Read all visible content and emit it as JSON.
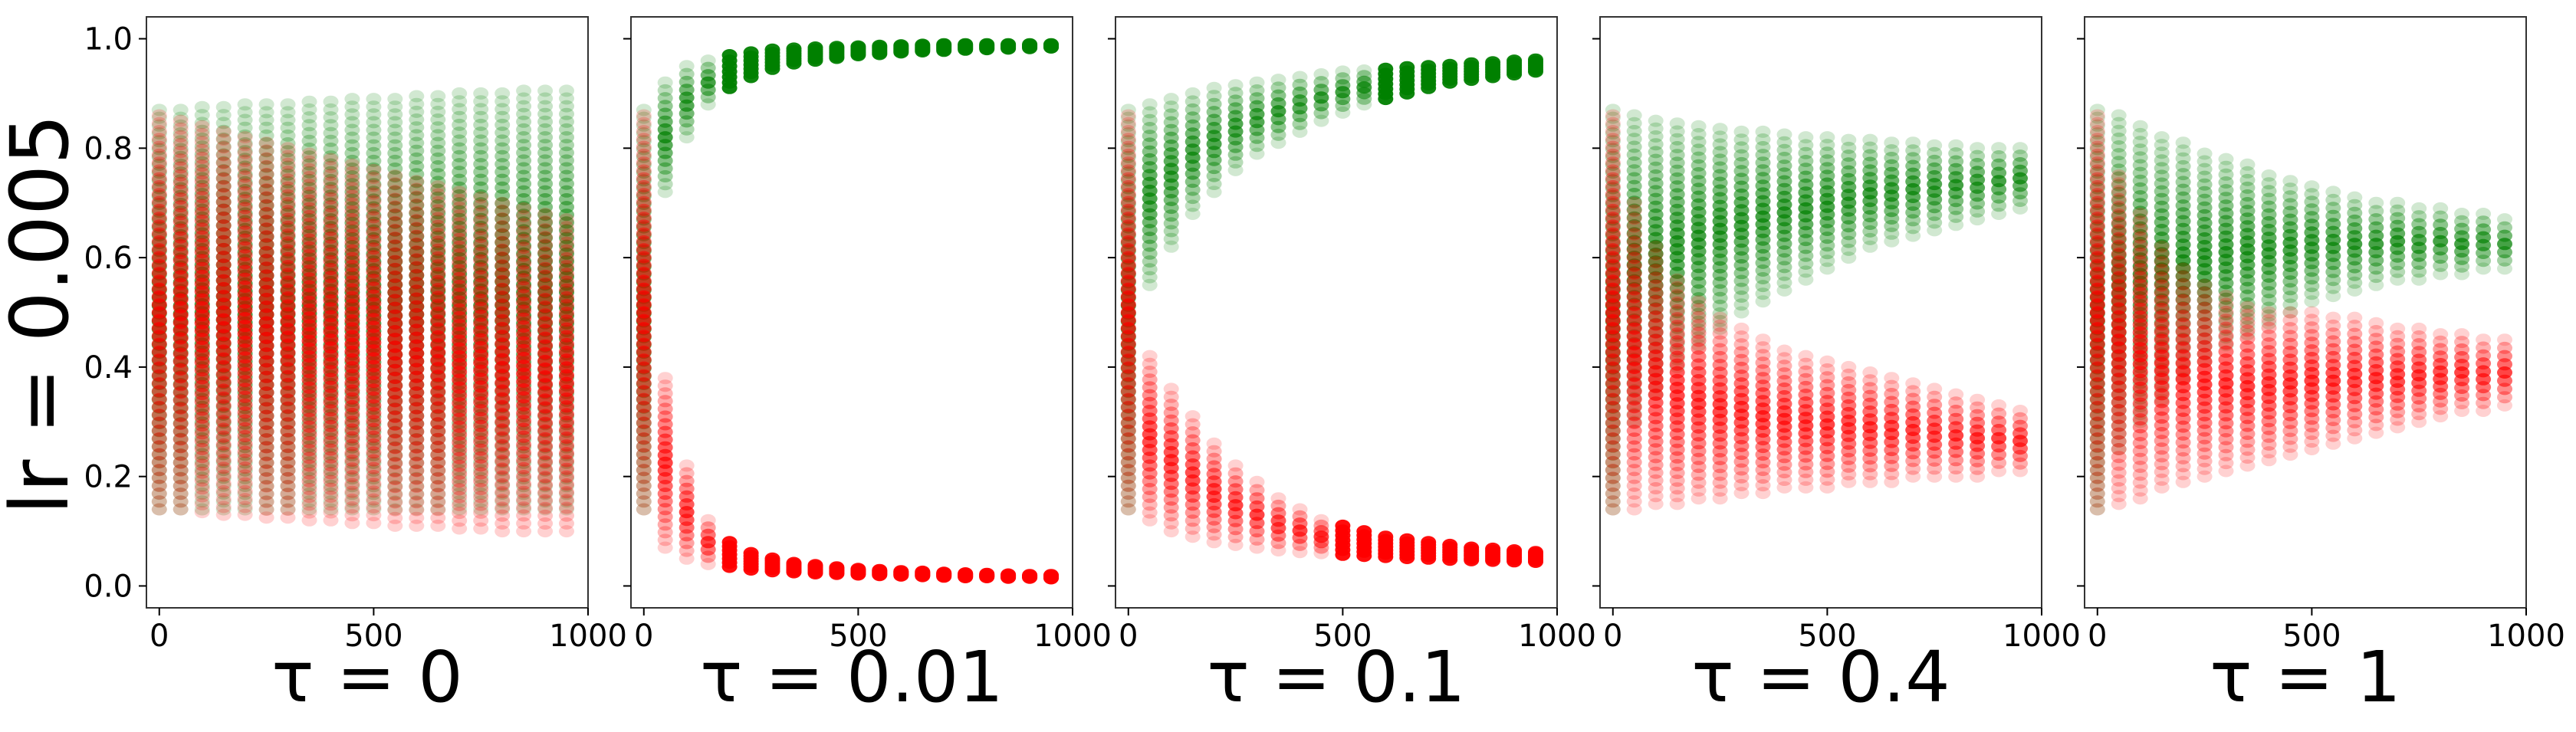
{
  "figure": {
    "row_label": "lr = 0.005",
    "point_color_high": "#008000",
    "point_color_low": "#ff0000"
  },
  "chart_data": [
    {
      "type": "scatter",
      "xlabel": "τ = 0",
      "xlim": [
        -30,
        1000
      ],
      "ylim": [
        -0.04,
        1.04
      ],
      "x_ticks": [
        "0",
        "500",
        "1000"
      ],
      "y_ticks": [
        "0.0",
        "0.2",
        "0.4",
        "0.6",
        "0.8",
        "1.0"
      ],
      "x": [
        0,
        50,
        100,
        150,
        200,
        250,
        300,
        350,
        400,
        450,
        500,
        550,
        600,
        650,
        700,
        750,
        800,
        850,
        900,
        950
      ],
      "series": [
        {
          "color": "#008000",
          "low": [
            0.14,
            0.14,
            0.14,
            0.14,
            0.14,
            0.14,
            0.14,
            0.14,
            0.14,
            0.14,
            0.14,
            0.14,
            0.14,
            0.14,
            0.14,
            0.14,
            0.14,
            0.14,
            0.14,
            0.14
          ],
          "high": [
            0.87,
            0.87,
            0.875,
            0.875,
            0.88,
            0.88,
            0.88,
            0.885,
            0.885,
            0.89,
            0.89,
            0.89,
            0.895,
            0.895,
            0.9,
            0.9,
            0.9,
            0.905,
            0.905,
            0.905
          ]
        },
        {
          "color": "#ff0000",
          "low": [
            0.14,
            0.14,
            0.135,
            0.13,
            0.13,
            0.125,
            0.125,
            0.12,
            0.12,
            0.115,
            0.115,
            0.11,
            0.11,
            0.11,
            0.105,
            0.105,
            0.1,
            0.1,
            0.1,
            0.1
          ],
          "high": [
            0.86,
            0.85,
            0.84,
            0.83,
            0.82,
            0.81,
            0.8,
            0.79,
            0.78,
            0.77,
            0.76,
            0.75,
            0.74,
            0.73,
            0.72,
            0.71,
            0.7,
            0.69,
            0.68,
            0.67
          ]
        }
      ]
    },
    {
      "type": "scatter",
      "xlabel": "τ = 0.01",
      "xlim": [
        -30,
        1000
      ],
      "ylim": [
        -0.04,
        1.04
      ],
      "x_ticks": [
        "0",
        "500",
        "1000"
      ],
      "y_ticks": [
        "0.0",
        "0.2",
        "0.4",
        "0.6",
        "0.8",
        "1.0"
      ],
      "x": [
        0,
        50,
        100,
        150,
        200,
        250,
        300,
        350,
        400,
        450,
        500,
        550,
        600,
        650,
        700,
        750,
        800,
        850,
        900,
        950
      ],
      "series": [
        {
          "color": "#008000",
          "low": [
            0.14,
            0.72,
            0.82,
            0.88,
            0.91,
            0.93,
            0.945,
            0.955,
            0.96,
            0.965,
            0.97,
            0.972,
            0.975,
            0.977,
            0.978,
            0.98,
            0.981,
            0.982,
            0.983,
            0.984
          ],
          "high": [
            0.87,
            0.92,
            0.95,
            0.96,
            0.97,
            0.975,
            0.98,
            0.982,
            0.984,
            0.985,
            0.986,
            0.987,
            0.988,
            0.989,
            0.99,
            0.99,
            0.99,
            0.99,
            0.99,
            0.99
          ]
        },
        {
          "color": "#ff0000",
          "low": [
            0.14,
            0.07,
            0.05,
            0.04,
            0.035,
            0.03,
            0.027,
            0.025,
            0.023,
            0.022,
            0.021,
            0.02,
            0.019,
            0.018,
            0.017,
            0.016,
            0.016,
            0.015,
            0.015,
            0.014
          ],
          "high": [
            0.86,
            0.38,
            0.22,
            0.12,
            0.08,
            0.06,
            0.05,
            0.042,
            0.038,
            0.034,
            0.031,
            0.029,
            0.027,
            0.026,
            0.024,
            0.023,
            0.022,
            0.021,
            0.02,
            0.02
          ]
        }
      ]
    },
    {
      "type": "scatter",
      "xlabel": "τ = 0.1",
      "xlim": [
        -30,
        1000
      ],
      "ylim": [
        -0.04,
        1.04
      ],
      "x_ticks": [
        "0",
        "500",
        "1000"
      ],
      "y_ticks": [
        "0.0",
        "0.2",
        "0.4",
        "0.6",
        "0.8",
        "1.0"
      ],
      "x": [
        0,
        50,
        100,
        150,
        200,
        250,
        300,
        350,
        400,
        450,
        500,
        550,
        600,
        650,
        700,
        750,
        800,
        850,
        900,
        950
      ],
      "series": [
        {
          "color": "#008000",
          "low": [
            0.14,
            0.55,
            0.62,
            0.68,
            0.72,
            0.76,
            0.79,
            0.81,
            0.83,
            0.85,
            0.865,
            0.88,
            0.89,
            0.9,
            0.91,
            0.92,
            0.925,
            0.93,
            0.935,
            0.94
          ],
          "high": [
            0.87,
            0.88,
            0.89,
            0.9,
            0.91,
            0.915,
            0.92,
            0.925,
            0.93,
            0.935,
            0.94,
            0.942,
            0.945,
            0.948,
            0.95,
            0.952,
            0.955,
            0.957,
            0.96,
            0.962
          ]
        },
        {
          "color": "#ff0000",
          "low": [
            0.14,
            0.12,
            0.1,
            0.09,
            0.08,
            0.075,
            0.07,
            0.065,
            0.062,
            0.06,
            0.057,
            0.055,
            0.053,
            0.051,
            0.05,
            0.048,
            0.047,
            0.046,
            0.045,
            0.044
          ],
          "high": [
            0.86,
            0.42,
            0.36,
            0.31,
            0.26,
            0.22,
            0.19,
            0.16,
            0.14,
            0.12,
            0.11,
            0.1,
            0.09,
            0.085,
            0.08,
            0.075,
            0.07,
            0.068,
            0.065,
            0.062
          ]
        }
      ]
    },
    {
      "type": "scatter",
      "xlabel": "τ = 0.4",
      "xlim": [
        -30,
        1000
      ],
      "ylim": [
        -0.04,
        1.04
      ],
      "x_ticks": [
        "0",
        "500",
        "1000"
      ],
      "y_ticks": [
        "0.0",
        "0.2",
        "0.4",
        "0.6",
        "0.8",
        "1.0"
      ],
      "x": [
        0,
        50,
        100,
        150,
        200,
        250,
        300,
        350,
        400,
        450,
        500,
        550,
        600,
        650,
        700,
        750,
        800,
        850,
        900,
        950
      ],
      "series": [
        {
          "color": "#008000",
          "low": [
            0.14,
            0.3,
            0.35,
            0.4,
            0.44,
            0.47,
            0.5,
            0.52,
            0.54,
            0.56,
            0.58,
            0.6,
            0.62,
            0.63,
            0.64,
            0.65,
            0.66,
            0.67,
            0.68,
            0.69
          ],
          "high": [
            0.87,
            0.86,
            0.85,
            0.845,
            0.84,
            0.835,
            0.83,
            0.83,
            0.825,
            0.82,
            0.82,
            0.815,
            0.815,
            0.81,
            0.81,
            0.805,
            0.805,
            0.8,
            0.8,
            0.8
          ]
        },
        {
          "color": "#ff0000",
          "low": [
            0.14,
            0.14,
            0.15,
            0.15,
            0.16,
            0.16,
            0.17,
            0.17,
            0.18,
            0.18,
            0.18,
            0.19,
            0.19,
            0.19,
            0.2,
            0.2,
            0.2,
            0.2,
            0.21,
            0.21
          ],
          "high": [
            0.86,
            0.7,
            0.62,
            0.56,
            0.52,
            0.49,
            0.47,
            0.45,
            0.43,
            0.42,
            0.41,
            0.4,
            0.39,
            0.38,
            0.37,
            0.36,
            0.35,
            0.34,
            0.33,
            0.32
          ]
        }
      ]
    },
    {
      "type": "scatter",
      "xlabel": "τ = 1",
      "xlim": [
        -30,
        1000
      ],
      "ylim": [
        -0.04,
        1.04
      ],
      "x_ticks": [
        "0",
        "500",
        "1000"
      ],
      "y_ticks": [
        "0.0",
        "0.2",
        "0.4",
        "0.6",
        "0.8",
        "1.0"
      ],
      "x": [
        0,
        50,
        100,
        150,
        200,
        250,
        300,
        350,
        400,
        450,
        500,
        550,
        600,
        650,
        700,
        750,
        800,
        850,
        900,
        950
      ],
      "series": [
        {
          "color": "#008000",
          "low": [
            0.14,
            0.25,
            0.3,
            0.34,
            0.38,
            0.41,
            0.44,
            0.46,
            0.48,
            0.5,
            0.52,
            0.53,
            0.54,
            0.55,
            0.56,
            0.56,
            0.57,
            0.57,
            0.58,
            0.58
          ],
          "high": [
            0.87,
            0.86,
            0.84,
            0.82,
            0.81,
            0.79,
            0.78,
            0.77,
            0.75,
            0.74,
            0.73,
            0.72,
            0.71,
            0.7,
            0.7,
            0.69,
            0.69,
            0.68,
            0.68,
            0.67
          ]
        },
        {
          "color": "#ff0000",
          "low": [
            0.14,
            0.15,
            0.16,
            0.18,
            0.19,
            0.2,
            0.21,
            0.22,
            0.23,
            0.24,
            0.25,
            0.26,
            0.27,
            0.28,
            0.29,
            0.3,
            0.31,
            0.32,
            0.32,
            0.33
          ],
          "high": [
            0.86,
            0.75,
            0.68,
            0.62,
            0.58,
            0.55,
            0.53,
            0.51,
            0.5,
            0.5,
            0.5,
            0.49,
            0.49,
            0.48,
            0.47,
            0.47,
            0.46,
            0.46,
            0.45,
            0.45
          ]
        }
      ]
    }
  ]
}
